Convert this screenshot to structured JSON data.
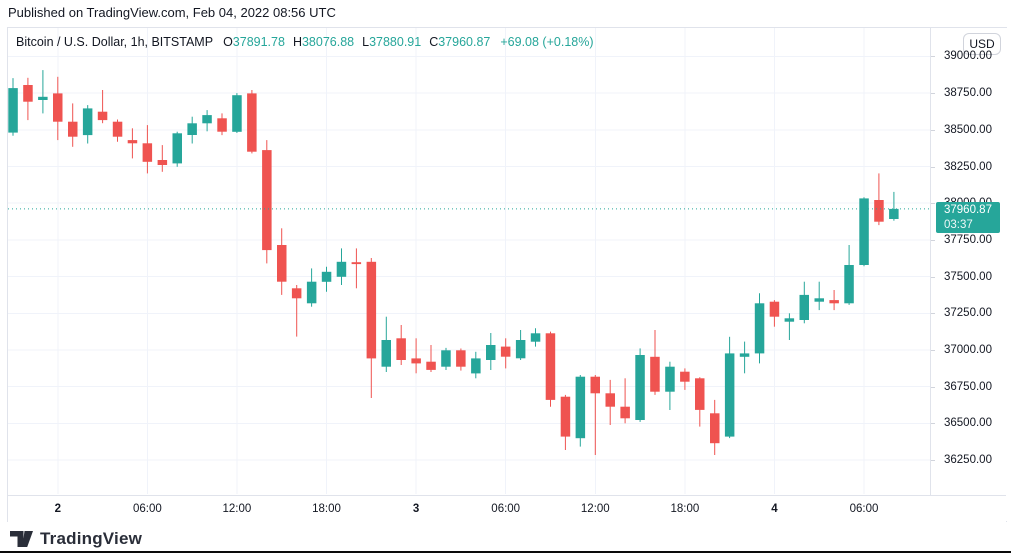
{
  "page": {
    "published_line": "Published on TradingView.com, Feb 04, 2022 08:56 UTC"
  },
  "chart": {
    "legend": {
      "symbol_title": "Bitcoin / U.S. Dollar, 1h, BITSTAMP",
      "ohlc": [
        {
          "label": "O",
          "value": "37891.78"
        },
        {
          "label": "H",
          "value": "38076.88"
        },
        {
          "label": "L",
          "value": "37880.91"
        },
        {
          "label": "C",
          "value": "37960.87"
        }
      ],
      "change_text": "+69.08 (+0.18%)"
    },
    "price_axis": {
      "currency_label": "USD",
      "tick_labels": [
        {
          "text": "39000.00",
          "price": 39000
        },
        {
          "text": "38750.00",
          "price": 38750
        },
        {
          "text": "38500.00",
          "price": 38500
        },
        {
          "text": "38250.00",
          "price": 38250
        },
        {
          "text": "38000.00",
          "price": 38000
        },
        {
          "text": "37750.00",
          "price": 37750
        },
        {
          "text": "37500.00",
          "price": 37500
        },
        {
          "text": "37250.00",
          "price": 37250
        },
        {
          "text": "37000.00",
          "price": 37000
        },
        {
          "text": "36750.00",
          "price": 36750
        },
        {
          "text": "36500.00",
          "price": 36500
        },
        {
          "text": "36250.00",
          "price": 36250
        }
      ],
      "last_price_badge": {
        "price_text": "37960.87",
        "countdown_text": "03:37"
      }
    },
    "time_axis": {
      "ticks": [
        {
          "text": "2",
          "hour": 3,
          "bold": true
        },
        {
          "text": "06:00",
          "hour": 9,
          "bold": false
        },
        {
          "text": "12:00",
          "hour": 15,
          "bold": false
        },
        {
          "text": "18:00",
          "hour": 21,
          "bold": false
        },
        {
          "text": "3",
          "hour": 27,
          "bold": true
        },
        {
          "text": "06:00",
          "hour": 33,
          "bold": false
        },
        {
          "text": "12:00",
          "hour": 39,
          "bold": false
        },
        {
          "text": "18:00",
          "hour": 45,
          "bold": false
        },
        {
          "text": "4",
          "hour": 51,
          "bold": true
        },
        {
          "text": "06:00",
          "hour": 57,
          "bold": false
        }
      ]
    },
    "colors": {
      "up": "#26a69a",
      "down": "#ef5350",
      "grid": "#f0f3fa",
      "border": "#e0e3eb",
      "text": "#131722",
      "badge_text": "#ffffff"
    }
  },
  "chart_data": {
    "type": "candlestick",
    "title": "Bitcoin / U.S. Dollar, 1h, BITSTAMP",
    "symbol": "Bitcoin / U.S. Dollar",
    "interval": "1h",
    "exchange": "BITSTAMP",
    "current": {
      "open": 37891.78,
      "high": 38076.88,
      "low": 37880.91,
      "close": 37960.87,
      "change": 69.08,
      "change_pct": 0.18
    },
    "ylim": [
      36100,
      39150
    ],
    "y_gridlines": [
      39000,
      38750,
      38500,
      38250,
      38000,
      37750,
      37500,
      37250,
      37000,
      36750,
      36500,
      36250
    ],
    "last_close_line": 37960.87,
    "columns": [
      "time",
      "open",
      "high",
      "low",
      "close"
    ],
    "candles": [
      [
        "Feb 1 21:00",
        38481,
        38852,
        38460,
        38784
      ],
      [
        "Feb 1 22:00",
        38805,
        38854,
        38566,
        38691
      ],
      [
        "Feb 1 23:00",
        38703,
        38907,
        38612,
        38725
      ],
      [
        "Feb 2 00:00",
        38748,
        38861,
        38430,
        38555
      ],
      [
        "Feb 2 01:00",
        38555,
        38680,
        38384,
        38453
      ],
      [
        "Feb 2 02:00",
        38464,
        38668,
        38407,
        38646
      ],
      [
        "Feb 2 03:00",
        38623,
        38771,
        38545,
        38566
      ],
      [
        "Feb 2 04:00",
        38555,
        38570,
        38419,
        38453
      ],
      [
        "Feb 2 05:00",
        38430,
        38510,
        38305,
        38408
      ],
      [
        "Feb 2 06:00",
        38408,
        38532,
        38203,
        38282
      ],
      [
        "Feb 2 07:00",
        38294,
        38396,
        38214,
        38260
      ],
      [
        "Feb 2 08:00",
        38271,
        38487,
        38248,
        38476
      ],
      [
        "Feb 2 09:00",
        38464,
        38589,
        38407,
        38544
      ],
      [
        "Feb 2 10:00",
        38544,
        38634,
        38490,
        38600
      ],
      [
        "Feb 2 11:00",
        38578,
        38612,
        38464,
        38487
      ],
      [
        "Feb 2 12:00",
        38487,
        38750,
        38478,
        38736
      ],
      [
        "Feb 2 13:00",
        38748,
        38771,
        38339,
        38351
      ],
      [
        "Feb 2 14:00",
        38362,
        38430,
        37590,
        37681
      ],
      [
        "Feb 2 15:00",
        37715,
        37829,
        37375,
        37465
      ],
      [
        "Feb 2 16:00",
        37420,
        37443,
        37091,
        37352
      ],
      [
        "Feb 2 17:00",
        37318,
        37556,
        37295,
        37465
      ],
      [
        "Feb 2 18:00",
        37465,
        37567,
        37397,
        37533
      ],
      [
        "Feb 2 19:00",
        37499,
        37692,
        37443,
        37601
      ],
      [
        "Feb 2 20:00",
        37598,
        37692,
        37420,
        37585
      ],
      [
        "Feb 2 21:00",
        37601,
        37627,
        36673,
        36943
      ],
      [
        "Feb 2 22:00",
        36886,
        37227,
        36850,
        37068
      ],
      [
        "Feb 2 23:00",
        37080,
        37170,
        36898,
        36932
      ],
      [
        "Feb 3 00:00",
        36943,
        37080,
        36841,
        36909
      ],
      [
        "Feb 3 01:00",
        36920,
        37034,
        36850,
        36864
      ],
      [
        "Feb 3 02:00",
        36886,
        37014,
        36864,
        36998
      ],
      [
        "Feb 3 03:00",
        36998,
        37010,
        36860,
        36886
      ],
      [
        "Feb 3 04:00",
        36841,
        36988,
        36807,
        36943
      ],
      [
        "Feb 3 05:00",
        36932,
        37116,
        36864,
        37034
      ],
      [
        "Feb 3 06:00",
        37023,
        37080,
        36875,
        36954
      ],
      [
        "Feb 3 07:00",
        36943,
        37136,
        36932,
        37068
      ],
      [
        "Feb 3 08:00",
        37057,
        37148,
        37023,
        37114
      ],
      [
        "Feb 3 09:00",
        37114,
        37125,
        36614,
        36660
      ],
      [
        "Feb 3 10:00",
        36682,
        36694,
        36319,
        36410
      ],
      [
        "Feb 3 11:00",
        36399,
        36830,
        36342,
        36818
      ],
      [
        "Feb 3 12:00",
        36818,
        36830,
        36285,
        36705
      ],
      [
        "Feb 3 13:00",
        36705,
        36796,
        36489,
        36614
      ],
      [
        "Feb 3 14:00",
        36614,
        36807,
        36501,
        36535
      ],
      [
        "Feb 3 15:00",
        36523,
        37011,
        36510,
        36966
      ],
      [
        "Feb 3 16:00",
        36954,
        37136,
        36694,
        36716
      ],
      [
        "Feb 3 17:00",
        36716,
        36920,
        36591,
        36886
      ],
      [
        "Feb 3 18:00",
        36852,
        36875,
        36728,
        36784
      ],
      [
        "Feb 3 19:00",
        36807,
        36815,
        36478,
        36592
      ],
      [
        "Feb 3 20:00",
        36569,
        36660,
        36285,
        36365
      ],
      [
        "Feb 3 21:00",
        36410,
        37090,
        36400,
        36977
      ],
      [
        "Feb 3 22:00",
        36954,
        37057,
        36841,
        36977
      ],
      [
        "Feb 3 23:00",
        36977,
        37386,
        36909,
        37318
      ],
      [
        "Feb 4 00:00",
        37329,
        37340,
        37159,
        37227
      ],
      [
        "Feb 4 01:00",
        37193,
        37250,
        37068,
        37216
      ],
      [
        "Feb 4 02:00",
        37204,
        37465,
        37182,
        37375
      ],
      [
        "Feb 4 03:00",
        37329,
        37465,
        37272,
        37352
      ],
      [
        "Feb 4 04:00",
        37340,
        37409,
        37272,
        37318
      ],
      [
        "Feb 4 05:00",
        37318,
        37715,
        37307,
        37579
      ],
      [
        "Feb 4 06:00",
        37579,
        38040,
        37570,
        38033
      ],
      [
        "Feb 4 07:00",
        38022,
        38203,
        37851,
        37874
      ],
      [
        "Feb 4 08:00",
        37891.78,
        38076.88,
        37880.91,
        37960.87
      ]
    ]
  },
  "footer": {
    "brand": "TradingView"
  }
}
